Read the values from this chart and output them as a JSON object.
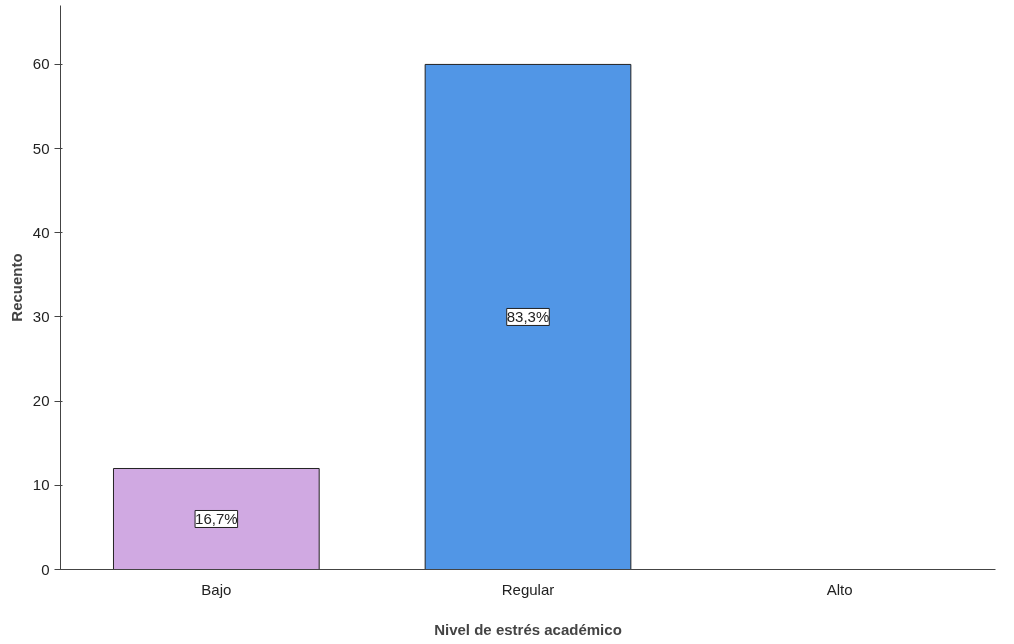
{
  "chart_data": {
    "type": "bar",
    "xlabel": "Nivel de estrés académico",
    "ylabel": "Recuento",
    "categories": [
      "Bajo",
      "Regular",
      "Alto"
    ],
    "values": [
      12,
      60,
      null
    ],
    "colors": [
      "#d0a9e2",
      "#5196e6",
      "#5196e6"
    ],
    "annotations": [
      {
        "text": "16,7%",
        "x": "Bajo",
        "y": 6
      },
      {
        "text": "83,3%",
        "x": "Regular",
        "y": 30
      }
    ],
    "ylim": [
      0,
      67
    ],
    "yticks": [
      0,
      10,
      20,
      30,
      40,
      50,
      60
    ],
    "grid": false
  }
}
